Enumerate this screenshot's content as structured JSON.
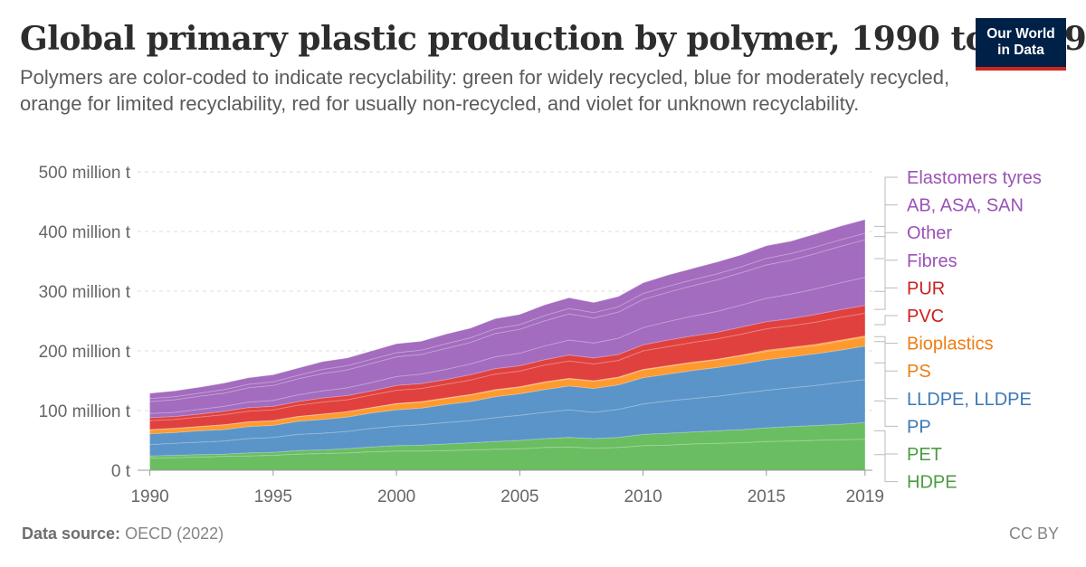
{
  "header": {
    "title": "Global primary plastic production by polymer, 1990 to 2019",
    "subtitle": "Polymers are color-coded to indicate recyclability: green for widely recycled, blue for moderately recycled, orange for limited recyclability, red for usually non-recycled, and violet for unknown recyclability."
  },
  "logo": {
    "line1": "Our World",
    "line2": "in Data",
    "bg_color": "#002147",
    "accent_color": "#ce261e"
  },
  "footer": {
    "source_label": "Data source:",
    "source_value": "OECD (2022)",
    "license": "CC BY"
  },
  "chart_data": {
    "type": "area",
    "stacked": true,
    "x": [
      1990,
      1991,
      1992,
      1993,
      1994,
      1995,
      1996,
      1997,
      1998,
      1999,
      2000,
      2001,
      2002,
      2003,
      2004,
      2005,
      2006,
      2007,
      2008,
      2009,
      2010,
      2011,
      2012,
      2013,
      2014,
      2015,
      2016,
      2017,
      2018,
      2019
    ],
    "xlim": [
      1989.5,
      2019.3
    ],
    "ylim": [
      0,
      510
    ],
    "y_ticks": [
      0,
      100,
      200,
      300,
      400,
      500
    ],
    "y_tick_labels": [
      "0 t",
      "100 million t",
      "200 million t",
      "300 million t",
      "400 million t",
      "500 million t"
    ],
    "x_ticks": [
      1990,
      1995,
      2000,
      2005,
      2010,
      2015,
      2019
    ],
    "x_tick_labels": [
      "1990",
      "1995",
      "2000",
      "2005",
      "2010",
      "2015",
      "2019"
    ],
    "grid": "horizontal-dashed",
    "legend": "right-inline",
    "colors": {
      "green": "#6bbd61",
      "blue": "#5b94c9",
      "orange": "#ff9a2f",
      "red": "#e0413e",
      "violet": "#a36cbf"
    },
    "label_colors": {
      "green": "#4a9c3f",
      "blue": "#3b78b5",
      "orange": "#ef7d13",
      "red": "#cc1f1f",
      "violet": "#9a52b6"
    },
    "series": [
      {
        "name": "HDPE",
        "group": "green",
        "values": [
          20,
          21,
          22,
          23,
          24,
          25,
          27,
          28,
          29,
          31,
          32,
          32,
          33,
          34,
          35,
          36,
          38,
          39,
          37,
          38,
          41,
          42,
          44,
          45,
          46,
          48,
          49,
          50,
          51,
          52
        ]
      },
      {
        "name": "PET",
        "group": "green",
        "values": [
          4,
          4,
          4,
          4,
          5,
          5,
          6,
          6,
          7,
          8,
          9,
          10,
          11,
          12,
          13,
          14,
          15,
          16,
          16,
          17,
          19,
          20,
          20,
          21,
          22,
          23,
          24,
          25,
          26,
          28
        ]
      },
      {
        "name": "PP",
        "group": "blue",
        "values": [
          19,
          20,
          21,
          22,
          24,
          25,
          27,
          28,
          29,
          31,
          33,
          34,
          36,
          37,
          40,
          42,
          44,
          46,
          44,
          47,
          51,
          54,
          56,
          58,
          61,
          63,
          65,
          67,
          70,
          72
        ]
      },
      {
        "name": "LLDPE, LLDPE",
        "group": "blue",
        "values": [
          18,
          18,
          19,
          19,
          20,
          20,
          22,
          23,
          24,
          26,
          27,
          28,
          30,
          32,
          35,
          36,
          38,
          40,
          40,
          41,
          44,
          45,
          47,
          48,
          49,
          51,
          52,
          53,
          54,
          56
        ]
      },
      {
        "name": "PS",
        "group": "orange",
        "values": [
          7,
          7,
          7,
          8,
          8,
          8,
          8,
          9,
          9,
          9,
          10,
          10,
          10,
          11,
          11,
          11,
          12,
          12,
          12,
          12,
          13,
          13,
          13,
          13,
          14,
          14,
          14,
          14,
          15,
          15
        ]
      },
      {
        "name": "Bioplastics",
        "group": "orange",
        "values": [
          0,
          0,
          0,
          0,
          0,
          0,
          0,
          0,
          0,
          0,
          1,
          1,
          1,
          1,
          1,
          1,
          1,
          1,
          1,
          1,
          1,
          1,
          1,
          1,
          1,
          2,
          2,
          2,
          2,
          2
        ]
      },
      {
        "name": "PVC",
        "group": "red",
        "values": [
          15,
          15,
          16,
          17,
          18,
          18,
          19,
          20,
          20,
          21,
          22,
          22,
          23,
          24,
          26,
          26,
          28,
          29,
          28,
          28,
          31,
          32,
          33,
          34,
          35,
          36,
          36,
          37,
          38,
          38
        ]
      },
      {
        "name": "PUR",
        "group": "red",
        "values": [
          5,
          5,
          5,
          6,
          6,
          6,
          6,
          7,
          7,
          7,
          8,
          8,
          8,
          9,
          9,
          9,
          9,
          10,
          10,
          10,
          10,
          11,
          11,
          11,
          12,
          12,
          12,
          13,
          13,
          13
        ]
      },
      {
        "name": "Fibres",
        "group": "violet",
        "values": [
          7,
          7,
          8,
          8,
          9,
          10,
          11,
          12,
          13,
          14,
          15,
          16,
          17,
          18,
          20,
          21,
          23,
          25,
          25,
          27,
          29,
          31,
          33,
          35,
          37,
          39,
          41,
          43,
          45,
          47
        ]
      },
      {
        "name": "Other",
        "group": "violet",
        "values": [
          20,
          21,
          22,
          22,
          24,
          25,
          27,
          29,
          30,
          32,
          33,
          33,
          35,
          36,
          39,
          40,
          42,
          44,
          42,
          44,
          47,
          49,
          51,
          53,
          54,
          56,
          57,
          59,
          61,
          63
        ]
      },
      {
        "name": "AB, ASA, SAN",
        "group": "violet",
        "values": [
          5,
          5,
          5,
          6,
          6,
          6,
          6,
          7,
          7,
          7,
          7,
          7,
          8,
          8,
          8,
          8,
          9,
          9,
          9,
          9,
          10,
          10,
          10,
          10,
          10,
          11,
          11,
          11,
          11,
          11
        ]
      },
      {
        "name": "Elastomers tyres",
        "group": "violet",
        "values": [
          9,
          10,
          10,
          11,
          11,
          12,
          12,
          13,
          13,
          14,
          15,
          15,
          16,
          16,
          17,
          17,
          18,
          18,
          17,
          17,
          18,
          19,
          19,
          20,
          20,
          21,
          21,
          22,
          23,
          23
        ]
      }
    ]
  }
}
